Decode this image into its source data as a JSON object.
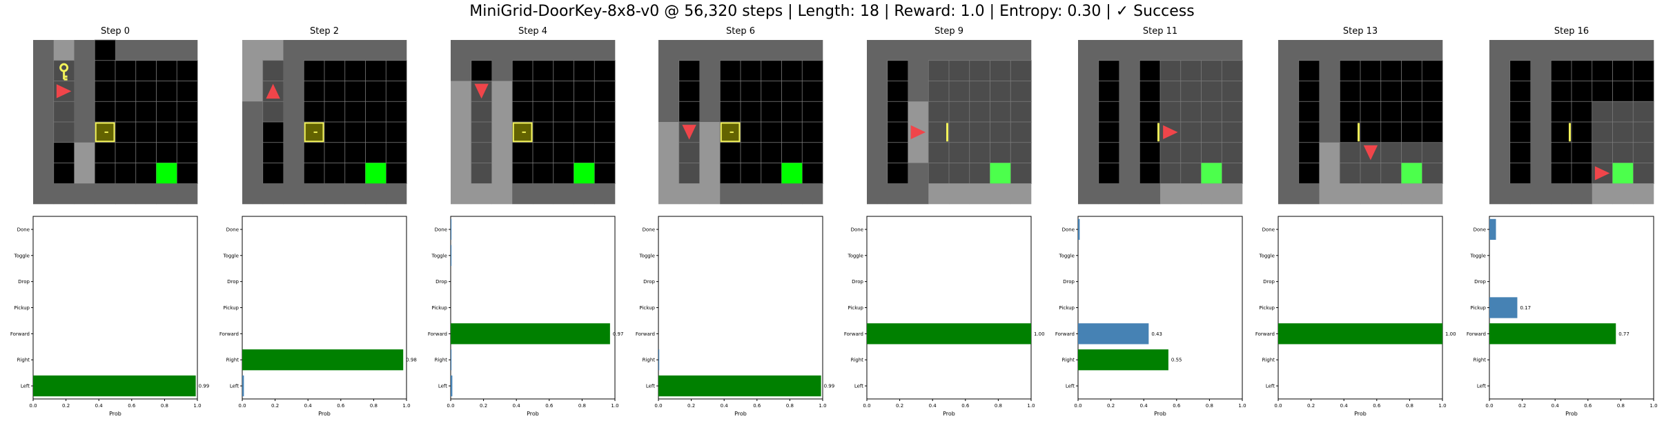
{
  "figure": {
    "title": "MiniGrid-DoorKey-8x8-v0 @ 56,320 steps | Length: 18 | Reward: 1.0 | Entropy: 0.30 | ✓ Success"
  },
  "colors": {
    "map_dim": "#646464",
    "map_visible": "#969696",
    "floor_dark": "#000000",
    "floor_lit": "#4c4c4c",
    "grid_line": "#7a7a7a",
    "agent": "#f0454a",
    "key": "#f3f35a",
    "door_frame": "#f3f35a",
    "door_fill": "#636300",
    "goal": "#00ff00",
    "goal_lit": "#4cff4c",
    "bar_chosen": "#008000",
    "bar_other": "#4682b4"
  },
  "actions": [
    "Left",
    "Right",
    "Forward",
    "Pickup",
    "Drop",
    "Toggle",
    "Done"
  ],
  "xaxis": {
    "label": "Prob",
    "ticks": [
      "0.0",
      "0.2",
      "0.4",
      "0.6",
      "0.8",
      "1.0"
    ],
    "lim": [
      0,
      1
    ]
  },
  "panels": [
    {
      "title": "Step 0",
      "grid": [
        [
          0,
          0,
          0,
          1,
          0,
          0,
          0,
          0
        ],
        [
          0,
          2,
          0,
          1,
          4,
          4,
          4,
          4
        ],
        [
          0,
          2,
          0,
          1,
          4,
          4,
          4,
          4
        ],
        [
          0,
          2,
          0,
          1,
          4,
          4,
          4,
          4
        ],
        [
          0,
          2,
          0,
          1,
          4,
          4,
          4,
          4
        ],
        [
          0,
          2,
          0,
          1,
          4,
          4,
          4,
          4
        ],
        [
          0,
          2,
          0,
          1,
          4,
          4,
          4,
          4
        ],
        [
          0,
          0,
          0,
          0,
          0,
          0,
          0,
          0
        ]
      ],
      "visible": [
        [
          0,
          1,
          1,
          0
        ],
        [
          1,
          1,
          1,
          1
        ],
        [
          2,
          1,
          1,
          1
        ],
        [
          3,
          1,
          1,
          1
        ],
        [
          4,
          1,
          1,
          1
        ],
        [
          5,
          2,
          1,
          1
        ],
        [
          6,
          2,
          1,
          1
        ]
      ],
      "key": [
        1,
        1
      ],
      "door": [
        4,
        3
      ],
      "door_state": "locked",
      "goal": [
        6,
        6
      ],
      "agent": {
        "cell": [
          2,
          1
        ],
        "dir": "right"
      },
      "chart_data": {
        "type": "bar",
        "orientation": "horizontal",
        "categories": [
          "Left",
          "Right",
          "Forward",
          "Pickup",
          "Drop",
          "Toggle",
          "Done"
        ],
        "values": [
          0.99,
          0,
          0,
          0,
          0,
          0,
          0
        ],
        "highlight": "Left",
        "labels": [
          {
            "category": "Left",
            "text": "0.99"
          }
        ]
      }
    },
    {
      "title": "Step 2",
      "grid": [
        [
          0,
          0,
          0,
          0,
          0,
          0,
          0,
          0
        ],
        [
          0,
          2,
          0,
          1,
          4,
          4,
          4,
          4
        ],
        [
          0,
          2,
          0,
          1,
          4,
          4,
          4,
          4
        ],
        [
          0,
          2,
          0,
          1,
          4,
          4,
          4,
          4
        ],
        [
          0,
          2,
          0,
          1,
          4,
          4,
          4,
          4
        ],
        [
          0,
          2,
          0,
          1,
          4,
          4,
          4,
          4
        ],
        [
          0,
          2,
          0,
          1,
          4,
          4,
          4,
          4
        ],
        [
          0,
          0,
          0,
          0,
          0,
          0,
          0,
          0
        ]
      ],
      "visible": [
        [
          0,
          0,
          2,
          1
        ],
        [
          1,
          0,
          2,
          1
        ],
        [
          2,
          0,
          2,
          1
        ],
        [
          3,
          1,
          1,
          1
        ]
      ],
      "door": [
        4,
        3
      ],
      "door_state": "locked",
      "goal": [
        6,
        6
      ],
      "agent": {
        "cell": [
          2,
          1
        ],
        "dir": "up"
      },
      "chart_data": {
        "type": "bar",
        "orientation": "horizontal",
        "categories": [
          "Left",
          "Right",
          "Forward",
          "Pickup",
          "Drop",
          "Toggle",
          "Done"
        ],
        "values": [
          0.01,
          0.98,
          0,
          0,
          0,
          0,
          0
        ],
        "highlight": "Right",
        "labels": [
          {
            "category": "Right",
            "text": "0.98"
          }
        ]
      }
    },
    {
      "title": "Step 4",
      "grid": [
        [
          0,
          0,
          0,
          0,
          0,
          0,
          0,
          0
        ],
        [
          0,
          2,
          0,
          1,
          4,
          4,
          4,
          4
        ],
        [
          0,
          2,
          0,
          1,
          4,
          4,
          4,
          4
        ],
        [
          0,
          2,
          0,
          1,
          4,
          4,
          4,
          4
        ],
        [
          0,
          2,
          0,
          1,
          4,
          4,
          4,
          4
        ],
        [
          0,
          2,
          0,
          1,
          4,
          4,
          4,
          4
        ],
        [
          0,
          2,
          0,
          1,
          4,
          4,
          4,
          4
        ],
        [
          0,
          0,
          0,
          0,
          0,
          0,
          0,
          0
        ]
      ],
      "visible": [
        [
          2,
          0,
          3,
          1
        ],
        [
          3,
          0,
          3,
          1
        ],
        [
          4,
          0,
          3,
          1
        ],
        [
          5,
          0,
          3,
          1
        ],
        [
          6,
          0,
          3,
          1
        ],
        [
          7,
          0,
          3,
          1
        ]
      ],
      "door": [
        4,
        3
      ],
      "door_state": "locked",
      "goal": [
        6,
        6
      ],
      "agent": {
        "cell": [
          2,
          1
        ],
        "dir": "down"
      },
      "chart_data": {
        "type": "bar",
        "orientation": "horizontal",
        "categories": [
          "Left",
          "Right",
          "Forward",
          "Pickup",
          "Drop",
          "Toggle",
          "Done"
        ],
        "values": [
          0.01,
          0.005,
          0.97,
          0,
          0,
          0.005,
          0.005
        ],
        "highlight": "Forward",
        "labels": [
          {
            "category": "Forward",
            "text": "0.97"
          }
        ]
      }
    },
    {
      "title": "Step 6",
      "grid": [
        [
          0,
          0,
          0,
          0,
          0,
          0,
          0,
          0
        ],
        [
          0,
          2,
          0,
          1,
          4,
          4,
          4,
          4
        ],
        [
          0,
          2,
          0,
          1,
          4,
          4,
          4,
          4
        ],
        [
          0,
          2,
          0,
          1,
          4,
          4,
          4,
          4
        ],
        [
          0,
          2,
          0,
          1,
          4,
          4,
          4,
          4
        ],
        [
          0,
          2,
          0,
          1,
          4,
          4,
          4,
          4
        ],
        [
          0,
          2,
          0,
          1,
          4,
          4,
          4,
          4
        ],
        [
          0,
          0,
          0,
          0,
          0,
          0,
          0,
          0
        ]
      ],
      "visible": [
        [
          4,
          0,
          3,
          1
        ],
        [
          5,
          0,
          3,
          1
        ],
        [
          6,
          0,
          3,
          1
        ],
        [
          7,
          0,
          3,
          1
        ]
      ],
      "door": [
        4,
        3
      ],
      "door_state": "locked",
      "goal": [
        6,
        6
      ],
      "agent": {
        "cell": [
          4,
          1
        ],
        "dir": "down"
      },
      "chart_data": {
        "type": "bar",
        "orientation": "horizontal",
        "categories": [
          "Left",
          "Right",
          "Forward",
          "Pickup",
          "Drop",
          "Toggle",
          "Done"
        ],
        "values": [
          0.99,
          0.005,
          0,
          0,
          0,
          0,
          0
        ],
        "highlight": "Left",
        "labels": [
          {
            "category": "Left",
            "text": "0.99"
          }
        ]
      }
    },
    {
      "title": "Step 9",
      "grid": [
        [
          0,
          0,
          0,
          0,
          0,
          0,
          0,
          0
        ],
        [
          0,
          2,
          0,
          1,
          4,
          4,
          4,
          4
        ],
        [
          0,
          2,
          0,
          1,
          4,
          4,
          4,
          4
        ],
        [
          0,
          2,
          0,
          1,
          4,
          4,
          4,
          4
        ],
        [
          0,
          2,
          0,
          1,
          4,
          4,
          4,
          4
        ],
        [
          0,
          2,
          0,
          1,
          4,
          4,
          4,
          4
        ],
        [
          0,
          2,
          0,
          1,
          4,
          4,
          4,
          4
        ],
        [
          0,
          0,
          0,
          0,
          0,
          0,
          0,
          0
        ]
      ],
      "visible": [
        [
          1,
          3,
          5,
          3
        ],
        [
          2,
          3,
          5,
          3
        ],
        [
          3,
          2,
          6,
          2
        ],
        [
          4,
          2,
          6,
          2
        ],
        [
          5,
          2,
          6,
          2
        ],
        [
          6,
          3,
          5,
          3
        ],
        [
          7,
          3,
          5,
          3
        ]
      ],
      "door": [
        4,
        3
      ],
      "door_state": "open",
      "goal": [
        6,
        6
      ],
      "agent": {
        "cell": [
          4,
          2
        ],
        "dir": "right"
      },
      "chart_data": {
        "type": "bar",
        "orientation": "horizontal",
        "categories": [
          "Left",
          "Right",
          "Forward",
          "Pickup",
          "Drop",
          "Toggle",
          "Done"
        ],
        "values": [
          0,
          0,
          1.0,
          0,
          0,
          0,
          0
        ],
        "highlight": "Forward",
        "labels": [
          {
            "category": "Forward",
            "text": "1.00"
          }
        ]
      }
    },
    {
      "title": "Step 11",
      "grid": [
        [
          0,
          0,
          0,
          0,
          0,
          0,
          0,
          0
        ],
        [
          0,
          2,
          0,
          2,
          4,
          4,
          4,
          4
        ],
        [
          0,
          2,
          0,
          2,
          4,
          4,
          4,
          4
        ],
        [
          0,
          2,
          0,
          2,
          4,
          4,
          4,
          4
        ],
        [
          0,
          2,
          0,
          2,
          4,
          4,
          4,
          4
        ],
        [
          0,
          2,
          0,
          2,
          4,
          4,
          4,
          4
        ],
        [
          0,
          2,
          0,
          2,
          4,
          4,
          4,
          4
        ],
        [
          0,
          0,
          0,
          0,
          0,
          0,
          0,
          0
        ]
      ],
      "visible": [
        [
          1,
          4,
          4,
          3
        ],
        [
          2,
          4,
          4,
          3
        ],
        [
          3,
          4,
          4,
          3
        ],
        [
          4,
          4,
          4,
          3
        ],
        [
          5,
          4,
          4,
          3
        ],
        [
          6,
          4,
          4,
          3
        ],
        [
          7,
          4,
          4,
          3
        ]
      ],
      "door": [
        4,
        3
      ],
      "door_state": "open",
      "goal": [
        6,
        6
      ],
      "agent": {
        "cell": [
          4,
          4
        ],
        "dir": "right"
      },
      "chart_data": {
        "type": "bar",
        "orientation": "horizontal",
        "categories": [
          "Left",
          "Right",
          "Forward",
          "Pickup",
          "Drop",
          "Toggle",
          "Done"
        ],
        "values": [
          0,
          0.55,
          0.43,
          0,
          0,
          0,
          0.01
        ],
        "highlight": "Right",
        "labels": [
          {
            "category": "Right",
            "text": "0.55"
          },
          {
            "category": "Forward",
            "text": "0.43"
          }
        ]
      }
    },
    {
      "title": "Step 13",
      "grid": [
        [
          0,
          0,
          0,
          0,
          0,
          0,
          0,
          0
        ],
        [
          0,
          2,
          0,
          2,
          4,
          4,
          4,
          4
        ],
        [
          0,
          2,
          0,
          2,
          4,
          4,
          4,
          4
        ],
        [
          0,
          2,
          0,
          2,
          4,
          4,
          4,
          4
        ],
        [
          0,
          2,
          0,
          2,
          4,
          4,
          4,
          4
        ],
        [
          0,
          2,
          0,
          2,
          4,
          4,
          4,
          4
        ],
        [
          0,
          2,
          0,
          2,
          4,
          4,
          4,
          4
        ],
        [
          0,
          0,
          0,
          0,
          0,
          0,
          0,
          0
        ]
      ],
      "visible": [
        [
          5,
          2,
          6,
          2
        ],
        [
          6,
          2,
          6,
          2
        ],
        [
          7,
          2,
          6,
          2
        ]
      ],
      "door": [
        4,
        3
      ],
      "door_state": "open",
      "goal": [
        6,
        6
      ],
      "agent": {
        "cell": [
          5,
          4
        ],
        "dir": "down"
      },
      "chart_data": {
        "type": "bar",
        "orientation": "horizontal",
        "categories": [
          "Left",
          "Right",
          "Forward",
          "Pickup",
          "Drop",
          "Toggle",
          "Done"
        ],
        "values": [
          0,
          0,
          1.0,
          0,
          0,
          0,
          0
        ],
        "highlight": "Forward",
        "labels": [
          {
            "category": "Forward",
            "text": "1.00"
          }
        ]
      }
    },
    {
      "title": "Step 16",
      "grid": [
        [
          0,
          0,
          0,
          0,
          0,
          0,
          0,
          0
        ],
        [
          0,
          2,
          0,
          2,
          4,
          4,
          4,
          4
        ],
        [
          0,
          2,
          0,
          2,
          4,
          4,
          4,
          4
        ],
        [
          0,
          2,
          0,
          2,
          4,
          4,
          4,
          4
        ],
        [
          0,
          2,
          0,
          2,
          4,
          4,
          4,
          4
        ],
        [
          0,
          2,
          0,
          2,
          4,
          4,
          4,
          4
        ],
        [
          0,
          2,
          0,
          2,
          4,
          4,
          4,
          4
        ],
        [
          0,
          0,
          0,
          0,
          0,
          0,
          0,
          0
        ]
      ],
      "visible": [
        [
          3,
          5,
          3,
          2
        ],
        [
          4,
          5,
          3,
          2
        ],
        [
          5,
          5,
          3,
          2
        ],
        [
          6,
          5,
          3,
          2
        ],
        [
          7,
          5,
          3,
          2
        ]
      ],
      "door": [
        4,
        3
      ],
      "door_state": "open",
      "goal": [
        6,
        6
      ],
      "agent": {
        "cell": [
          6,
          5
        ],
        "dir": "right"
      },
      "chart_data": {
        "type": "bar",
        "orientation": "horizontal",
        "categories": [
          "Left",
          "Right",
          "Forward",
          "Pickup",
          "Drop",
          "Toggle",
          "Done"
        ],
        "values": [
          0,
          0,
          0.77,
          0.17,
          0,
          0,
          0.04
        ],
        "highlight": "Forward",
        "labels": [
          {
            "category": "Forward",
            "text": "0.77"
          },
          {
            "category": "Pickup",
            "text": "0.17"
          }
        ]
      }
    }
  ]
}
